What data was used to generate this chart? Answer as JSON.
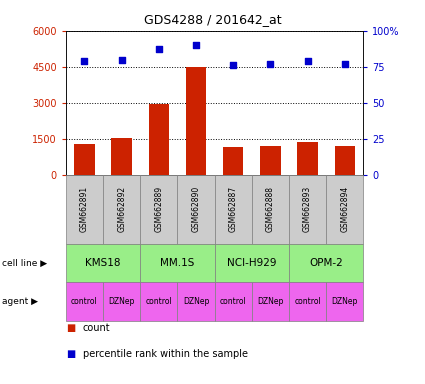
{
  "title": "GDS4288 / 201642_at",
  "samples": [
    "GSM662891",
    "GSM662892",
    "GSM662889",
    "GSM662890",
    "GSM662887",
    "GSM662888",
    "GSM662893",
    "GSM662894"
  ],
  "counts": [
    1300,
    1550,
    2950,
    4500,
    1150,
    1200,
    1350,
    1200
  ],
  "percentile_ranks": [
    79,
    80,
    87,
    90,
    76,
    77,
    79,
    77
  ],
  "cell_lines": [
    {
      "label": "KMS18",
      "start": 0,
      "end": 2
    },
    {
      "label": "MM.1S",
      "start": 2,
      "end": 4
    },
    {
      "label": "NCI-H929",
      "start": 4,
      "end": 6
    },
    {
      "label": "OPM-2",
      "start": 6,
      "end": 8
    }
  ],
  "agents": [
    "control",
    "DZNep",
    "control",
    "DZNep",
    "control",
    "DZNep",
    "control",
    "DZNep"
  ],
  "bar_color": "#cc2200",
  "scatter_color": "#0000cc",
  "cell_line_color": "#99ee88",
  "agent_color": "#ee66ee",
  "sample_box_color": "#cccccc",
  "left_axis_color": "#cc2200",
  "right_axis_color": "#0000cc",
  "ylim_left": [
    0,
    6000
  ],
  "ylim_right": [
    0,
    100
  ],
  "yticks_left": [
    0,
    1500,
    3000,
    4500,
    6000
  ],
  "ytick_labels_left": [
    "0",
    "1500",
    "3000",
    "4500",
    "6000"
  ],
  "yticks_right": [
    0,
    25,
    50,
    75,
    100
  ],
  "ytick_labels_right": [
    "0",
    "25",
    "50",
    "75",
    "100%"
  ]
}
